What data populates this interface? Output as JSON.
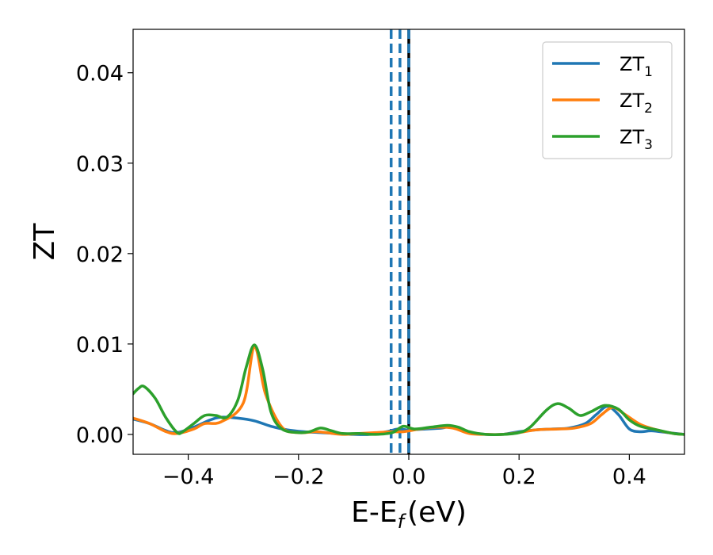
{
  "chart_data": {
    "type": "line",
    "xlabel": "E-E",
    "xlabel_subscript": "f",
    "xlabel_unit": "(eV)",
    "ylabel": "ZT",
    "xlim": [
      -0.5,
      0.5
    ],
    "ylim": [
      -0.0022,
      0.0448
    ],
    "xticks": [
      -0.4,
      -0.2,
      0.0,
      0.2,
      0.4
    ],
    "xtick_labels": [
      "−0.4",
      "−0.2",
      "0.0",
      "0.2",
      "0.4"
    ],
    "yticks": [
      0.0,
      0.01,
      0.02,
      0.03,
      0.04
    ],
    "ytick_labels": [
      "0.00",
      "0.01",
      "0.02",
      "0.03",
      "0.04"
    ],
    "grid": false,
    "legend_position": "top-right",
    "vlines": [
      {
        "x": -0.032,
        "color": "#1f77b4",
        "style": "dashed"
      },
      {
        "x": -0.016,
        "color": "#1f77b4",
        "style": "dashed"
      },
      {
        "x": 0.0,
        "color": "#000000",
        "style": "solid"
      },
      {
        "x": 0.0,
        "color": "#1f77b4",
        "style": "dashed"
      }
    ],
    "series": [
      {
        "name": "ZT",
        "subscript": "1",
        "color": "#1f77b4",
        "x": [
          -0.5,
          -0.47,
          -0.44,
          -0.42,
          -0.39,
          -0.36,
          -0.34,
          -0.31,
          -0.28,
          -0.25,
          -0.22,
          -0.19,
          -0.16,
          -0.13,
          -0.1,
          -0.07,
          -0.04,
          -0.02,
          0.0,
          0.03,
          0.06,
          0.08,
          0.11,
          0.14,
          0.17,
          0.2,
          0.23,
          0.26,
          0.29,
          0.32,
          0.34,
          0.36,
          0.38,
          0.4,
          0.42,
          0.44,
          0.47,
          0.5
        ],
        "y": [
          0.0017,
          0.0012,
          0.0004,
          0.0002,
          0.0008,
          0.0016,
          0.0019,
          0.0018,
          0.0015,
          0.0009,
          0.0005,
          0.0003,
          0.0002,
          0.0001,
          0.0,
          0.0,
          0.0003,
          0.0006,
          0.0005,
          0.0006,
          0.0007,
          0.0009,
          0.0002,
          0.0,
          0.0,
          0.0003,
          0.0005,
          0.0006,
          0.0007,
          0.0012,
          0.0022,
          0.0031,
          0.0022,
          0.0006,
          0.0003,
          0.0004,
          0.0002,
          0.0
        ]
      },
      {
        "name": "ZT",
        "subscript": "2",
        "color": "#ff7f0e",
        "x": [
          -0.5,
          -0.47,
          -0.44,
          -0.42,
          -0.39,
          -0.37,
          -0.34,
          -0.3,
          -0.28,
          -0.26,
          -0.23,
          -0.2,
          -0.17,
          -0.15,
          -0.12,
          -0.09,
          -0.06,
          -0.03,
          -0.01,
          0.02,
          0.05,
          0.08,
          0.11,
          0.14,
          0.17,
          0.2,
          0.23,
          0.27,
          0.3,
          0.33,
          0.35,
          0.37,
          0.39,
          0.42,
          0.45,
          0.48,
          0.5
        ],
        "y": [
          0.0018,
          0.0012,
          0.0003,
          0.0001,
          0.0006,
          0.0012,
          0.0014,
          0.0035,
          0.0097,
          0.0045,
          0.0008,
          0.0002,
          0.0003,
          0.0002,
          0.0,
          0.0001,
          0.0002,
          0.0003,
          0.0003,
          0.0006,
          0.0008,
          0.0007,
          0.0001,
          0.0,
          0.0,
          0.0002,
          0.0005,
          0.0006,
          0.0007,
          0.0012,
          0.0022,
          0.003,
          0.0023,
          0.0011,
          0.0005,
          0.0001,
          0.0
        ]
      },
      {
        "name": "ZT",
        "subscript": "3",
        "color": "#2ca02c",
        "x": [
          -0.5,
          -0.49,
          -0.48,
          -0.46,
          -0.44,
          -0.42,
          -0.41,
          -0.39,
          -0.37,
          -0.35,
          -0.33,
          -0.31,
          -0.295,
          -0.28,
          -0.265,
          -0.25,
          -0.23,
          -0.2,
          -0.18,
          -0.16,
          -0.14,
          -0.12,
          -0.09,
          -0.06,
          -0.03,
          -0.01,
          0.01,
          0.04,
          0.07,
          0.09,
          0.11,
          0.14,
          0.17,
          0.2,
          0.22,
          0.25,
          0.27,
          0.29,
          0.31,
          0.33,
          0.355,
          0.38,
          0.4,
          0.42,
          0.45,
          0.48,
          0.5
        ],
        "y": [
          0.0045,
          0.0051,
          0.0053,
          0.004,
          0.0018,
          0.0002,
          0.0003,
          0.0012,
          0.0021,
          0.0021,
          0.0019,
          0.0038,
          0.0074,
          0.0099,
          0.0072,
          0.0025,
          0.0006,
          0.0002,
          0.0003,
          0.0007,
          0.0004,
          0.0001,
          0.0001,
          0.0,
          0.0002,
          0.0009,
          0.0006,
          0.0008,
          0.001,
          0.0008,
          0.0003,
          0.0,
          0.0,
          0.0002,
          0.0008,
          0.0027,
          0.0034,
          0.0029,
          0.0021,
          0.0025,
          0.0032,
          0.0028,
          0.0016,
          0.0009,
          0.0005,
          0.0001,
          0.0
        ]
      }
    ]
  }
}
